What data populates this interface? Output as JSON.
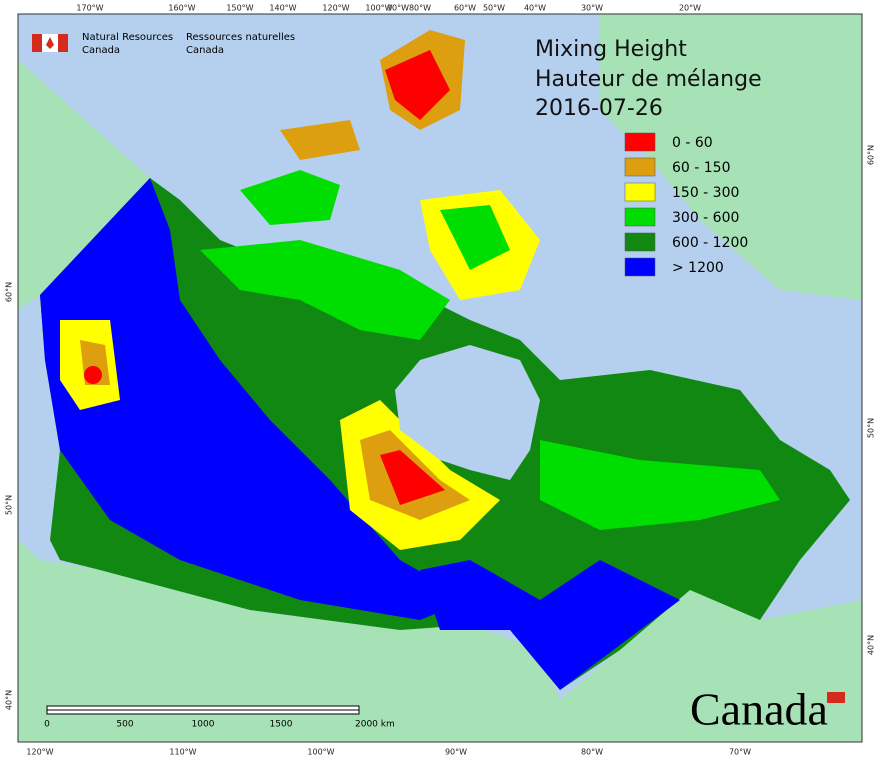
{
  "agency": {
    "english_line1": "Natural Resources",
    "english_line2": "Canada",
    "french_line1": "Ressources naturelles",
    "french_line2": "Canada"
  },
  "title": {
    "line1": "Mixing Height",
    "line2": "Hauteur de mélange",
    "date": "2016-07-26"
  },
  "legend": [
    {
      "label": "0 - 60",
      "color": "#ff0000"
    },
    {
      "label": "60 - 150",
      "color": "#dd9f10"
    },
    {
      "label": "150 - 300",
      "color": "#ffff00"
    },
    {
      "label": "300 - 600",
      "color": "#00dd00"
    },
    {
      "label": "600 - 1200",
      "color": "#118811"
    },
    {
      "label": "> 1200",
      "color": "#0000ff"
    }
  ],
  "graticule": {
    "top": [
      "170°W",
      "160°W",
      "150°W",
      "140°W",
      "120°W",
      "100°W",
      "90°W",
      "80°W",
      "60°W",
      "50°W",
      "40°W",
      "30°W",
      "20°W"
    ],
    "bottom": [
      "120°W",
      "110°W",
      "100°W",
      "90°W",
      "80°W",
      "70°W"
    ],
    "left": [
      "60°N",
      "50°N",
      "40°N"
    ],
    "right": [
      "60°N",
      "50°N",
      "40°N"
    ]
  },
  "scale_bar": {
    "labels": [
      "0",
      "500",
      "1000",
      "1500",
      "2000 km"
    ]
  },
  "wordmark": "Canada"
}
